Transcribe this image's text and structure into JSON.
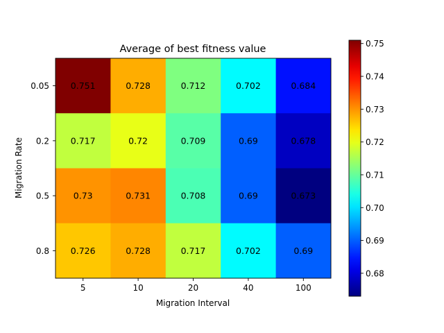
{
  "chart_data": {
    "type": "heatmap",
    "title": "Average of best fitness value",
    "xlabel": "Migration Interval",
    "ylabel": "Migration Rate",
    "x_categories": [
      "5",
      "10",
      "20",
      "40",
      "100"
    ],
    "y_categories": [
      "0.05",
      "0.2",
      "0.5",
      "0.8"
    ],
    "values": [
      [
        0.751,
        0.728,
        0.712,
        0.702,
        0.684
      ],
      [
        0.717,
        0.72,
        0.709,
        0.69,
        0.678
      ],
      [
        0.73,
        0.731,
        0.708,
        0.69,
        0.673
      ],
      [
        0.726,
        0.728,
        0.717,
        0.702,
        0.69
      ]
    ],
    "annotations": [
      [
        "0.751",
        "0.728",
        "0.712",
        "0.702",
        "0.684"
      ],
      [
        "0.717",
        "0.72",
        "0.709",
        "0.69",
        "0.678"
      ],
      [
        "0.73",
        "0.731",
        "0.708",
        "0.69",
        "0.673"
      ],
      [
        "0.726",
        "0.728",
        "0.717",
        "0.702",
        "0.69"
      ]
    ],
    "colormap": "jet",
    "colorbar": {
      "range": [
        0.673,
        0.751
      ],
      "ticks": [
        "0.68",
        "0.69",
        "0.70",
        "0.71",
        "0.72",
        "0.73",
        "0.74",
        "0.75"
      ]
    },
    "grid": false
  }
}
